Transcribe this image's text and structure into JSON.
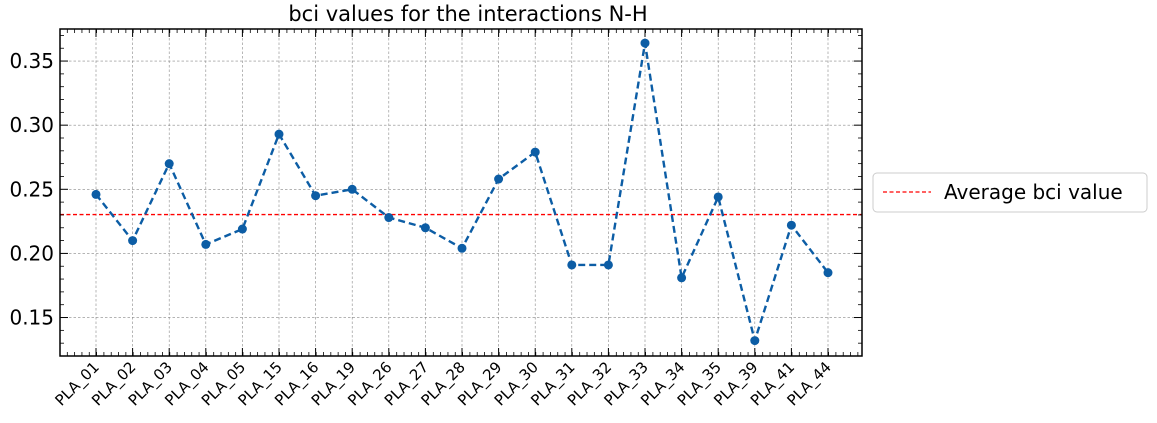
{
  "chart_data": {
    "type": "line",
    "title": "bci values for the interactions N-H",
    "xlabel": "",
    "ylabel": "",
    "categories": [
      "PLA_01",
      "PLA_02",
      "PLA_03",
      "PLA_04",
      "PLA_05",
      "PLA_15",
      "PLA_16",
      "PLA_19",
      "PLA_26",
      "PLA_27",
      "PLA_28",
      "PLA_29",
      "PLA_30",
      "PLA_31",
      "PLA_32",
      "PLA_33",
      "PLA_34",
      "PLA_35",
      "PLA_39",
      "PLA_41",
      "PLA_44"
    ],
    "series": [
      {
        "values": [
          0.246,
          0.21,
          0.27,
          0.207,
          0.219,
          0.293,
          0.245,
          0.25,
          0.228,
          0.22,
          0.204,
          0.258,
          0.279,
          0.191,
          0.191,
          0.364,
          0.181,
          0.244,
          0.132,
          0.222,
          0.185
        ],
        "color": "#0C5DA5",
        "style": "dashed",
        "marker": "circle"
      }
    ],
    "reference_line": {
      "label": "Average bci value",
      "value": 0.2303,
      "color": "#FF0000",
      "style": "dashed"
    },
    "ylim": [
      0.12,
      0.375
    ],
    "yticks": [
      "0.15",
      "0.20",
      "0.25",
      "0.30",
      "0.35"
    ],
    "grid": true,
    "legend_placement": "right-outside"
  }
}
